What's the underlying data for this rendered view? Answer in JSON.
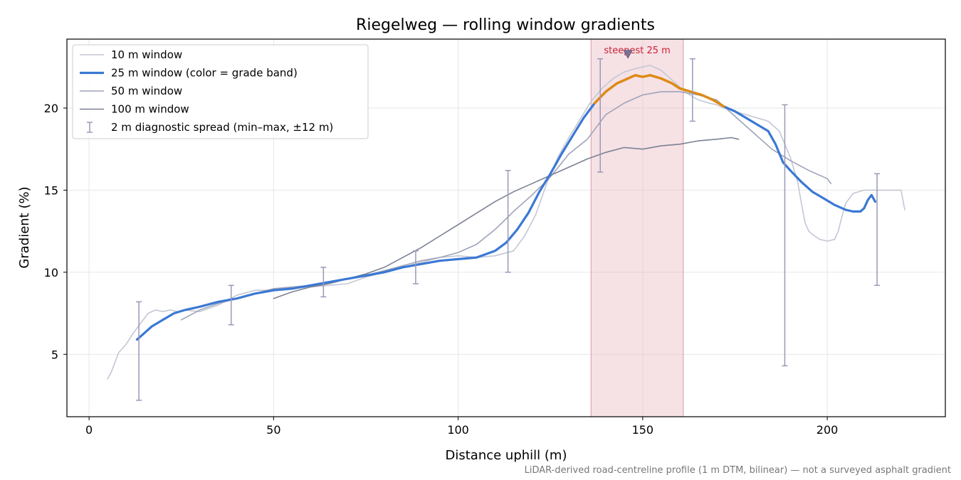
{
  "chart_data": {
    "type": "line",
    "title": "Riegelweg — rolling window gradients",
    "xlabel": "Distance uphill (m)",
    "ylabel": "Gradient (%)",
    "xlim": [
      -6,
      232
    ],
    "ylim": [
      1.2,
      24.2
    ],
    "x_ticks": [
      0,
      50,
      100,
      150,
      200
    ],
    "y_ticks": [
      5,
      10,
      15,
      20
    ],
    "grid": true,
    "legend_position": "upper-left",
    "footnote": "LiDAR-derived road-centreline profile (1 m DTM, bilinear) — not a surveyed asphalt gradient",
    "highlight": {
      "label": "steepest 25 m",
      "x_start": 136,
      "x_end": 161,
      "marker_x": 146,
      "marker_y": 23.3,
      "color": "#e8b4bd"
    },
    "series": [
      {
        "name": "10 m window",
        "color": "#c4c7d4",
        "x": [
          5,
          6,
          8,
          10,
          12,
          14,
          16,
          18,
          20,
          22,
          24,
          26,
          30,
          35,
          40,
          45,
          50,
          55,
          60,
          65,
          70,
          75,
          80,
          85,
          90,
          95,
          100,
          105,
          110,
          115,
          118,
          121,
          124,
          127,
          130,
          133,
          136,
          139,
          142,
          145,
          148,
          150,
          152,
          155,
          158,
          160,
          162,
          165,
          168,
          170,
          172,
          175,
          178,
          181,
          184,
          187,
          190,
          192,
          193,
          194,
          195,
          196,
          198,
          200,
          202,
          203,
          204,
          205,
          207,
          210,
          215,
          218,
          220,
          221
        ],
        "y": [
          3.5,
          3.9,
          5.1,
          5.6,
          6.3,
          6.9,
          7.5,
          7.7,
          7.6,
          7.7,
          7.6,
          7.7,
          7.6,
          8.0,
          8.6,
          8.9,
          8.9,
          9.0,
          9.1,
          9.2,
          9.3,
          9.7,
          10.0,
          10.3,
          10.6,
          10.9,
          11.0,
          10.9,
          11.0,
          11.3,
          12.2,
          13.5,
          15.4,
          17.0,
          18.2,
          19.3,
          20.4,
          21.2,
          21.8,
          22.2,
          22.4,
          22.5,
          22.6,
          22.3,
          21.7,
          21.3,
          20.9,
          20.5,
          20.3,
          20.2,
          20.0,
          19.8,
          19.6,
          19.4,
          19.2,
          18.6,
          17.0,
          15.5,
          14.2,
          13.0,
          12.5,
          12.3,
          12.0,
          11.9,
          12.0,
          12.5,
          13.4,
          14.2,
          14.8,
          15.0,
          15.0,
          15.0,
          15.0,
          13.8
        ]
      },
      {
        "name": "25 m window (color = grade band)",
        "color": "#3a78d4",
        "band_color": "#e08a10",
        "band_x_range": [
          137,
          172
        ],
        "x": [
          13,
          15,
          17,
          20,
          23,
          26,
          30,
          35,
          40,
          45,
          50,
          55,
          60,
          65,
          70,
          75,
          80,
          85,
          90,
          95,
          100,
          105,
          110,
          113,
          116,
          119,
          122,
          125,
          128,
          131,
          134,
          137,
          140,
          143,
          146,
          148,
          150,
          152,
          155,
          158,
          160,
          163,
          166,
          169,
          172,
          175,
          178,
          181,
          184,
          186,
          188,
          190,
          193,
          196,
          199,
          202,
          205,
          207,
          209,
          210,
          211,
          212,
          213
        ],
        "y": [
          5.9,
          6.3,
          6.7,
          7.1,
          7.5,
          7.7,
          7.9,
          8.2,
          8.4,
          8.7,
          8.9,
          9.0,
          9.2,
          9.4,
          9.6,
          9.8,
          10.0,
          10.3,
          10.5,
          10.7,
          10.8,
          10.9,
          11.3,
          11.8,
          12.6,
          13.6,
          14.9,
          16.0,
          17.2,
          18.3,
          19.4,
          20.3,
          21.0,
          21.5,
          21.8,
          22.0,
          21.9,
          22.0,
          21.8,
          21.5,
          21.2,
          21.0,
          20.8,
          20.5,
          20.1,
          19.8,
          19.4,
          19.0,
          18.6,
          17.8,
          16.7,
          16.2,
          15.5,
          14.9,
          14.5,
          14.1,
          13.8,
          13.7,
          13.7,
          13.9,
          14.4,
          14.7,
          14.3
        ]
      },
      {
        "name": "50 m window",
        "color": "#9ea3b8",
        "x": [
          25,
          30,
          35,
          40,
          45,
          50,
          55,
          60,
          65,
          70,
          75,
          80,
          85,
          90,
          95,
          100,
          105,
          110,
          115,
          120,
          125,
          130,
          135,
          140,
          145,
          150,
          155,
          160,
          165,
          170,
          175,
          180,
          185,
          190,
          195,
          200,
          201
        ],
        "y": [
          7.1,
          7.7,
          8.1,
          8.4,
          8.7,
          9.0,
          9.1,
          9.2,
          9.4,
          9.6,
          9.8,
          10.1,
          10.4,
          10.7,
          10.9,
          11.2,
          11.7,
          12.6,
          13.7,
          14.7,
          15.8,
          17.2,
          18.1,
          19.6,
          20.3,
          20.8,
          21.0,
          21.0,
          20.8,
          20.5,
          19.5,
          18.5,
          17.5,
          16.8,
          16.2,
          15.7,
          15.4
        ]
      },
      {
        "name": "100 m window",
        "color": "#7c8294",
        "x": [
          50,
          55,
          60,
          65,
          70,
          75,
          80,
          85,
          90,
          95,
          100,
          105,
          110,
          115,
          120,
          125,
          130,
          135,
          140,
          145,
          150,
          155,
          160,
          165,
          170,
          174,
          176
        ],
        "y": [
          8.4,
          8.8,
          9.1,
          9.3,
          9.6,
          9.9,
          10.3,
          10.9,
          11.5,
          12.2,
          12.9,
          13.6,
          14.3,
          14.9,
          15.4,
          15.9,
          16.4,
          16.9,
          17.3,
          17.6,
          17.5,
          17.7,
          17.8,
          18.0,
          18.1,
          18.2,
          18.1
        ]
      },
      {
        "name": "2 m diagnostic spread (min–max, ±12 m)",
        "type": "errorbar",
        "color": "#9a98b8",
        "x": [
          13.5,
          38.5,
          63.5,
          88.5,
          113.5,
          138.5,
          163.5,
          188.5,
          213.5
        ],
        "low": [
          2.2,
          6.8,
          8.5,
          9.3,
          10.0,
          16.1,
          19.2,
          4.3,
          9.2
        ],
        "high": [
          8.2,
          9.2,
          10.3,
          11.3,
          16.2,
          23.0,
          23.0,
          20.2,
          16.0
        ]
      }
    ]
  }
}
